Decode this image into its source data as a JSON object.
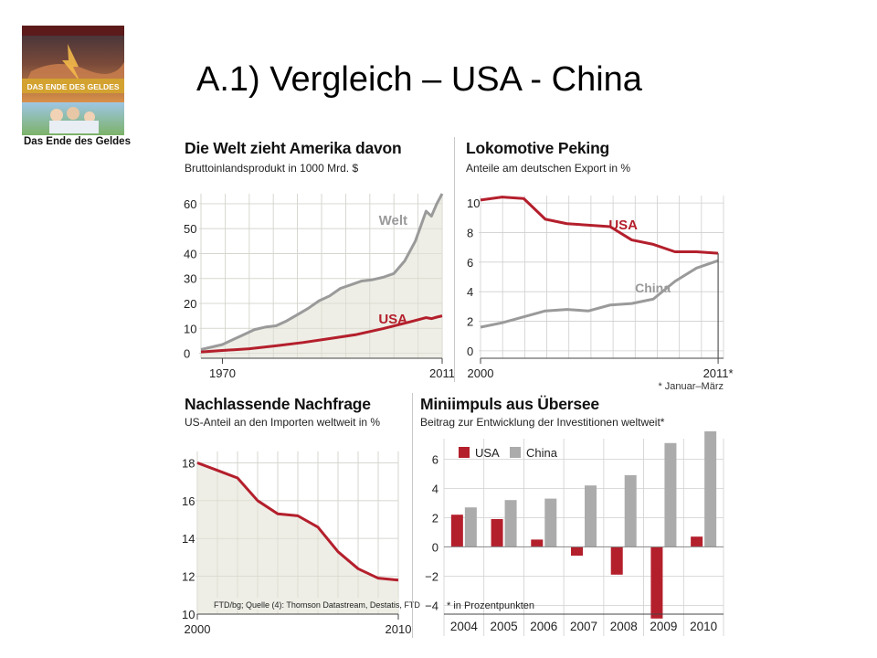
{
  "slide": {
    "title": "A.1)  Vergleich – USA - China"
  },
  "book": {
    "caption": "Das Ende des Geldes",
    "cover_title": "DAS ENDE DES GELDES"
  },
  "chart_data": [
    {
      "id": "welt",
      "type": "area",
      "title": "Die Welt zieht Amerika davon",
      "subtitle": "Bruttoinlandsprodukt in 1000 Mrd. $",
      "xlabel": "",
      "ylabel": "",
      "xlim": [
        1966,
        2011
      ],
      "ylim": [
        -2,
        64
      ],
      "yticks": [
        0,
        10,
        20,
        30,
        40,
        50,
        60
      ],
      "xtick_labels": [
        {
          "x": 1970,
          "label": "1970"
        },
        {
          "x": 2011,
          "label": "2011"
        }
      ],
      "grid": true,
      "series": [
        {
          "name": "Welt",
          "color": "#9a9a9a",
          "fill": "#eeeee6",
          "x": [
            1966,
            1968,
            1970,
            1972,
            1974,
            1976,
            1978,
            1980,
            1982,
            1984,
            1986,
            1988,
            1990,
            1992,
            1994,
            1996,
            1998,
            2000,
            2002,
            2004,
            2006,
            2007,
            2008,
            2009,
            2010,
            2011
          ],
          "y": [
            1.5,
            2.5,
            3.5,
            5.5,
            7.5,
            9.5,
            10.5,
            11,
            13,
            15.5,
            18,
            21,
            23,
            26,
            27.5,
            29,
            29.5,
            30.5,
            32,
            37,
            45,
            51,
            57,
            55,
            60,
            64
          ]
        },
        {
          "name": "USA",
          "color": "#b41f2c",
          "x": [
            1966,
            1970,
            1975,
            1980,
            1985,
            1990,
            1995,
            2000,
            2005,
            2008,
            2009,
            2010,
            2011
          ],
          "y": [
            0.5,
            1.1,
            1.8,
            3,
            4.3,
            5.9,
            7.5,
            9.9,
            12.6,
            14.3,
            13.9,
            14.5,
            15
          ]
        }
      ]
    },
    {
      "id": "lokomotive",
      "type": "line",
      "title": "Lokomotive Peking",
      "subtitle": "Anteile am deutschen Export in %",
      "footnote": "* Januar–März",
      "xlim": [
        2000,
        2011.25
      ],
      "ylim": [
        -0.5,
        10.5
      ],
      "yticks": [
        0,
        2,
        4,
        6,
        8,
        10
      ],
      "xtick_labels": [
        {
          "x": 2000,
          "label": "2000"
        },
        {
          "x": 2011,
          "label": "2011*"
        }
      ],
      "grid": true,
      "series": [
        {
          "name": "USA",
          "color": "#b41f2c",
          "x": [
            2000,
            2001,
            2002,
            2003,
            2004,
            2005,
            2006,
            2007,
            2008,
            2009,
            2010,
            2011
          ],
          "y": [
            10.2,
            10.4,
            10.3,
            8.9,
            8.6,
            8.5,
            8.4,
            7.5,
            7.2,
            6.7,
            6.7,
            6.6
          ]
        },
        {
          "name": "China",
          "color": "#9a9a9a",
          "x": [
            2000,
            2001,
            2002,
            2003,
            2004,
            2005,
            2006,
            2007,
            2008,
            2009,
            2010,
            2011
          ],
          "y": [
            1.6,
            1.9,
            2.3,
            2.7,
            2.8,
            2.7,
            3.1,
            3.2,
            3.5,
            4.7,
            5.6,
            6.1
          ]
        }
      ]
    },
    {
      "id": "nachfrage",
      "type": "area",
      "title": "Nachlassende Nachfrage",
      "subtitle": "US-Anteil an den Importen weltweit in %",
      "source": "FTD/bg; Quelle (4): Thomson Datastream, Destatis, FTD",
      "xlim": [
        2000,
        2010
      ],
      "ylim": [
        10,
        18.6
      ],
      "yticks": [
        10,
        12,
        14,
        16,
        18
      ],
      "xtick_labels": [
        {
          "x": 2000,
          "label": "2000"
        },
        {
          "x": 2010,
          "label": "2010"
        }
      ],
      "grid": true,
      "series": [
        {
          "name": "",
          "color": "#b41f2c",
          "fill": "#eeeee6",
          "x": [
            2000,
            2001,
            2002,
            2003,
            2004,
            2005,
            2006,
            2007,
            2008,
            2009,
            2010
          ],
          "y": [
            18.0,
            17.6,
            17.2,
            16.0,
            15.3,
            15.2,
            14.6,
            13.3,
            12.4,
            11.9,
            11.8
          ]
        }
      ]
    },
    {
      "id": "miniimpuls",
      "type": "bar",
      "title": "Miniimpuls aus Übersee",
      "subtitle": "Beitrag zur Entwicklung der Investitionen weltweit*",
      "footnote": "* in Prozentpunkten",
      "ylim": [
        -4.6,
        7.4
      ],
      "yticks": [
        -4,
        -2,
        0,
        2,
        4,
        6
      ],
      "ytick_labels": [
        "−4",
        "−2",
        "0",
        "2",
        "4",
        "6"
      ],
      "grid": true,
      "legend": "top-left",
      "categories": [
        "2004",
        "2005",
        "2006",
        "2007",
        "2008",
        "2009",
        "2010"
      ],
      "series": [
        {
          "name": "USA",
          "color": "#b41f2c",
          "values": [
            2.2,
            1.9,
            0.5,
            -0.6,
            -1.9,
            -4.9,
            0.7
          ]
        },
        {
          "name": "China",
          "color": "#ababab",
          "values": [
            2.7,
            3.2,
            3.3,
            4.2,
            4.9,
            7.1,
            7.9
          ]
        }
      ]
    }
  ]
}
